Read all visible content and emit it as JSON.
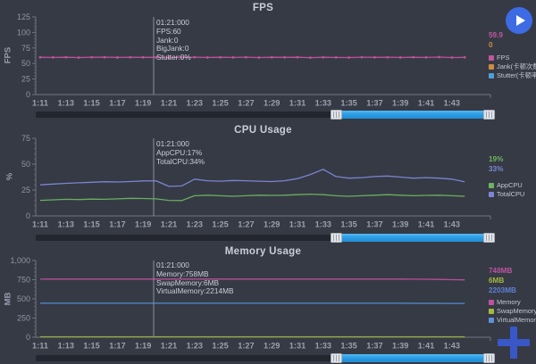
{
  "colors": {
    "background": "#363a45",
    "scrollbar_accent": "#2d9ce4",
    "play_button": "#3c6be4",
    "plus_button": "#3a57c8",
    "axis": "#70757f",
    "crosshair": "#8a909c"
  },
  "ui": {
    "play_button_label": "play",
    "add_button_label": "add"
  },
  "chart_data": [
    {
      "type": "line",
      "title": "FPS",
      "ylabel": "FPS",
      "ylim": [
        0,
        125
      ],
      "y_ticks": [
        0,
        25,
        50,
        75,
        100,
        125
      ],
      "y_tick_labels": [
        "0",
        "25",
        "50",
        "75",
        "100",
        "125"
      ],
      "x_ticks": [
        "1:11",
        "1:13",
        "1:15",
        "1:17",
        "1:19",
        "1:21",
        "1:23",
        "1:25",
        "1:27",
        "1:29",
        "1:31",
        "1:33",
        "1:35",
        "1:37",
        "1:39",
        "1:41",
        "1:43"
      ],
      "grid": false,
      "legend_position": "right",
      "crosshair_time": "01:21:000",
      "tooltip_lines": [
        "01:21:000",
        "FPS:60",
        "Jank:0",
        "BigJank:0",
        "Stutter:0%"
      ],
      "current_values": [
        {
          "text": "59.9",
          "color": "#c0579e"
        },
        {
          "text": "0",
          "color": "#cf8b3f"
        }
      ],
      "legend": [
        {
          "label": "FPS",
          "color": "#c0579e"
        },
        {
          "label": "Jank(卡顿次数)",
          "color": "#cf8b3f"
        },
        {
          "label": "Stutter(卡顿率)",
          "color": "#4f9ed9"
        }
      ],
      "series": [
        {
          "name": "FPS",
          "color": "#bd5398",
          "markers": true,
          "values": [
            60,
            59.8,
            60.1,
            59.6,
            60,
            60.2,
            59.7,
            60,
            59.9,
            60,
            59.5,
            59.9,
            60.1,
            59.7,
            60,
            59.8,
            60.2,
            59.6,
            60,
            59.9,
            60.1,
            59.5,
            60,
            59.8,
            59.6,
            60.2,
            59.9,
            60,
            59.7,
            60.1,
            59.8,
            60.3,
            59.6,
            59.9
          ]
        },
        {
          "name": "Jank",
          "color": "#cf8b3f",
          "plot": false,
          "values": [
            0,
            0,
            0,
            0,
            0,
            0,
            0,
            0,
            0,
            0,
            0,
            0,
            0,
            0,
            0,
            0,
            0,
            0,
            0,
            0,
            0,
            0,
            0,
            0,
            0,
            0,
            0,
            0,
            0,
            0,
            0,
            0,
            0,
            0
          ]
        },
        {
          "name": "Stutter",
          "color": "#4f9ed9",
          "plot": false,
          "values": [
            0,
            0,
            0,
            0,
            0,
            0,
            0,
            0,
            0,
            0,
            0,
            0,
            0,
            0,
            0,
            0,
            0,
            0,
            0,
            0,
            0,
            0,
            0,
            0,
            0,
            0,
            0,
            0,
            0,
            0,
            0,
            0,
            0,
            0
          ]
        }
      ]
    },
    {
      "type": "line",
      "title": "CPU Usage",
      "ylabel": "%",
      "ylim": [
        0,
        75
      ],
      "y_ticks": [
        0,
        25,
        50,
        75
      ],
      "y_tick_labels": [
        "0",
        "25",
        "50",
        "75"
      ],
      "x_ticks": [
        "1:11",
        "1:13",
        "1:15",
        "1:17",
        "1:19",
        "1:21",
        "1:23",
        "1:25",
        "1:27",
        "1:29",
        "1:31",
        "1:33",
        "1:35",
        "1:37",
        "1:39",
        "1:41",
        "1:43"
      ],
      "grid": false,
      "legend_position": "right",
      "crosshair_time": "01:21:000",
      "tooltip_lines": [
        "01:21:000",
        "AppCPU:17%",
        "TotalCPU:34%"
      ],
      "current_values": [
        {
          "text": "19%",
          "color": "#6db460"
        },
        {
          "text": "33%",
          "color": "#7d86d2"
        }
      ],
      "legend": [
        {
          "label": "AppCPU",
          "color": "#6db460"
        },
        {
          "label": "TotalCPU",
          "color": "#7d86d2"
        }
      ],
      "series": [
        {
          "name": "AppCPU",
          "color": "#6aae5e",
          "values": [
            15,
            15.5,
            16,
            15.8,
            16.2,
            16,
            16.5,
            17,
            16.8,
            16.5,
            15,
            14.8,
            19.5,
            20,
            19.5,
            19,
            19.5,
            20,
            19.8,
            20,
            20.5,
            21,
            20.5,
            19.5,
            19,
            19.5,
            20,
            20.5,
            20,
            19.5,
            19.8,
            20,
            19.5,
            19
          ]
        },
        {
          "name": "TotalCPU",
          "color": "#7b84cf",
          "values": [
            30,
            30.8,
            31.5,
            32,
            32.5,
            33,
            32.8,
            33.2,
            33.8,
            34,
            28.5,
            29,
            35.5,
            34,
            33.5,
            34.2,
            34,
            33.5,
            33.2,
            34,
            36,
            40,
            45,
            38,
            36.5,
            37,
            38,
            38.5,
            37.5,
            36.5,
            37,
            36.5,
            35.5,
            33
          ]
        }
      ]
    },
    {
      "type": "line",
      "title": "Memory Usage",
      "ylabel": "MB",
      "ylim": [
        0,
        1000
      ],
      "y_ticks": [
        0,
        250,
        500,
        750,
        1000
      ],
      "y_tick_labels": [
        "0",
        "250",
        "500",
        "750",
        "1,000"
      ],
      "x_ticks": [
        "1:11",
        "1:13",
        "1:15",
        "1:17",
        "1:19",
        "1:21",
        "1:23",
        "1:25",
        "1:27",
        "1:29",
        "1:31",
        "1:33",
        "1:35",
        "1:37",
        "1:39",
        "1:41",
        "1:43"
      ],
      "grid": false,
      "legend_position": "right",
      "crosshair_time": "01:21:000",
      "tooltip_lines": [
        "01:21:000",
        "Memory:758MB",
        "SwapMemory:6MB",
        "VirtualMemory:2214MB"
      ],
      "current_values": [
        {
          "text": "748MB",
          "color": "#bd53a0"
        },
        {
          "text": "6MB",
          "color": "#a2b93f"
        },
        {
          "text": "2203MB",
          "color": "#5f7fd8"
        }
      ],
      "legend": [
        {
          "label": "Memory",
          "color": "#bd53a0"
        },
        {
          "label": "SwapMemory",
          "color": "#a2b93f"
        },
        {
          "label": "VirtualMemory",
          "color": "#5f8fd8"
        }
      ],
      "series": [
        {
          "name": "Memory",
          "color": "#b94f9b",
          "values": [
            757,
            758,
            758,
            758,
            758,
            758,
            758,
            758,
            758,
            758,
            758,
            758,
            758,
            758,
            758,
            758,
            758,
            758,
            758,
            758,
            758,
            758,
            758,
            758,
            758,
            758,
            758,
            758,
            758,
            757,
            756,
            754,
            750,
            748
          ]
        },
        {
          "name": "SwapMemory",
          "color": "#97ad3d",
          "values": [
            6,
            6,
            6,
            6,
            6,
            6,
            6,
            6,
            6,
            6,
            6,
            6,
            6,
            6,
            6,
            6,
            6,
            6,
            6,
            6,
            6,
            6,
            6,
            6,
            6,
            6,
            6,
            6,
            6,
            6,
            6,
            6,
            6,
            6
          ]
        },
        {
          "name": "VirtualMemory",
          "color": "#4f8ed2",
          "plot_scale": 0.2,
          "values": [
            2214,
            2214,
            2214,
            2214,
            2214,
            2214,
            2214,
            2214,
            2214,
            2214,
            2214,
            2214,
            2214,
            2214,
            2214,
            2214,
            2214,
            2214,
            2214,
            2214,
            2214,
            2214,
            2214,
            2214,
            2214,
            2214,
            2214,
            2214,
            2214,
            2212,
            2210,
            2208,
            2205,
            2203
          ]
        }
      ]
    }
  ]
}
